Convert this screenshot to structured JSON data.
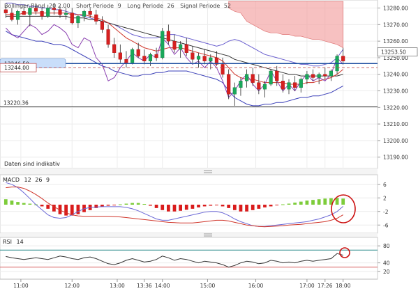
{
  "chart_data": {
    "type": "candlestick",
    "main": {
      "legend": [
        {
          "name": "Bollinger Band",
          "params": "20 2.00"
        },
        {
          "name": "Short Periode",
          "params": "9"
        },
        {
          "name": "Long Periode",
          "params": "26"
        },
        {
          "name": "Signal Periode",
          "params": "52"
        }
      ],
      "y_ticks": [
        "13280.00",
        "13270.00",
        "13260.00",
        "13250.00",
        "13240.00",
        "13230.00",
        "13220.00",
        "13210.00",
        "13200.00",
        "13190.00"
      ],
      "ylim": [
        13184,
        13284
      ],
      "price_label": "13253.50",
      "levels": [
        {
          "label": "13246.50",
          "value": 13246.5
        },
        {
          "label": "13244.00",
          "value": 13244.0
        },
        {
          "label": "13220.36",
          "value": 13220.36
        }
      ],
      "note": "Daten sind indikativ",
      "candles": [
        [
          13279,
          13281,
          13274,
          13277
        ],
        [
          13277,
          13280,
          13272,
          13273
        ],
        [
          13273,
          13279,
          13270,
          13278
        ],
        [
          13278,
          13282,
          13276,
          13276
        ],
        [
          13276,
          13281,
          13269,
          13280
        ],
        [
          13280,
          13283,
          13276,
          13278
        ],
        [
          13278,
          13281,
          13273,
          13275
        ],
        [
          13275,
          13282,
          13274,
          13280
        ],
        [
          13280,
          13283,
          13276,
          13279
        ],
        [
          13279,
          13281,
          13274,
          13276
        ],
        [
          13276,
          13280,
          13273,
          13277
        ],
        [
          13277,
          13280,
          13270,
          13271
        ],
        [
          13271,
          13276,
          13268,
          13275
        ],
        [
          13275,
          13279,
          13272,
          13278
        ],
        [
          13278,
          13280,
          13274,
          13276
        ],
        [
          13276,
          13279,
          13270,
          13272
        ],
        [
          13272,
          13275,
          13265,
          13267
        ],
        [
          13267,
          13270,
          13256,
          13258
        ],
        [
          13258,
          13262,
          13250,
          13253
        ],
        [
          13253,
          13258,
          13247,
          13249
        ],
        [
          13249,
          13254,
          13244,
          13247
        ],
        [
          13247,
          13256,
          13246,
          13255
        ],
        [
          13255,
          13259,
          13250,
          13251
        ],
        [
          13251,
          13255,
          13246,
          13248
        ],
        [
          13248,
          13253,
          13245,
          13252
        ],
        [
          13252,
          13256,
          13248,
          13250
        ],
        [
          13250,
          13268,
          13249,
          13266
        ],
        [
          13266,
          13270,
          13258,
          13260
        ],
        [
          13260,
          13264,
          13253,
          13255
        ],
        [
          13255,
          13260,
          13250,
          13258
        ],
        [
          13258,
          13262,
          13251,
          13253
        ],
        [
          13253,
          13257,
          13247,
          13249
        ],
        [
          13249,
          13253,
          13244,
          13251
        ],
        [
          13251,
          13255,
          13246,
          13248
        ],
        [
          13248,
          13252,
          13243,
          13250
        ],
        [
          13250,
          13254,
          13245,
          13246
        ],
        [
          13246,
          13250,
          13238,
          13240
        ],
        [
          13240,
          13243,
          13225,
          13228
        ],
        [
          13228,
          13235,
          13221,
          13232
        ],
        [
          13232,
          13238,
          13227,
          13236
        ],
        [
          13236,
          13243,
          13232,
          13240
        ],
        [
          13240,
          13244,
          13233,
          13235
        ],
        [
          13235,
          13240,
          13228,
          13231
        ],
        [
          13231,
          13236,
          13226,
          13234
        ],
        [
          13234,
          13243,
          13233,
          13242
        ],
        [
          13242,
          13245,
          13233,
          13236
        ],
        [
          13236,
          13240,
          13229,
          13231
        ],
        [
          13231,
          13237,
          13228,
          13235
        ],
        [
          13235,
          13239,
          13230,
          13232
        ],
        [
          13232,
          13238,
          13229,
          13237
        ],
        [
          13237,
          13242,
          13234,
          13240
        ],
        [
          13240,
          13243,
          13236,
          13238
        ],
        [
          13238,
          13241,
          13234,
          13240
        ],
        [
          13240,
          13244,
          13237,
          13239
        ],
        [
          13239,
          13243,
          13236,
          13242
        ],
        [
          13242,
          13252,
          13240,
          13251
        ],
        [
          13251,
          13256,
          13246,
          13248
        ]
      ],
      "bollinger_upper": [
        13283,
        13283,
        13282,
        13282,
        13281,
        13281,
        13280,
        13280,
        13279,
        13279,
        13278,
        13277,
        13276,
        13275,
        13274,
        13273,
        13272,
        13271,
        13270,
        13268,
        13266,
        13264,
        13263,
        13262,
        13262,
        13262,
        13263,
        13264,
        13264,
        13263,
        13262,
        13261,
        13260,
        13259,
        13258,
        13257,
        13258,
        13260,
        13261,
        13260,
        13258,
        13256,
        13254,
        13252,
        13251,
        13250,
        13249,
        13248,
        13247,
        13246,
        13246,
        13245,
        13245,
        13246,
        13247,
        13250,
        13255
      ],
      "bollinger_lower": [
        13266,
        13264,
        13263,
        13262,
        13261,
        13260,
        13260,
        13259,
        13258,
        13258,
        13257,
        13255,
        13253,
        13251,
        13249,
        13247,
        13245,
        13244,
        13242,
        13241,
        13240,
        13239,
        13239,
        13240,
        13240,
        13241,
        13241,
        13242,
        13242,
        13242,
        13242,
        13241,
        13240,
        13239,
        13238,
        13237,
        13235,
        13230,
        13226,
        13224,
        13222,
        13221,
        13221,
        13222,
        13222,
        13223,
        13223,
        13224,
        13225,
        13226,
        13226,
        13227,
        13227,
        13228,
        13229,
        13231,
        13233
      ],
      "ma_short": [
        13276,
        13276,
        13276,
        13277,
        13277,
        13277,
        13277,
        13277,
        13277,
        13277,
        13277,
        13276,
        13276,
        13276,
        13275,
        13274,
        13273,
        13271,
        13268,
        13265,
        13262,
        13260,
        13258,
        13256,
        13255,
        13254,
        13255,
        13256,
        13256,
        13256,
        13255,
        13254,
        13253,
        13252,
        13251,
        13250,
        13248,
        13244,
        13240,
        13238,
        13237,
        13237,
        13236,
        13235,
        13235,
        13235,
        13235,
        13234,
        13234,
        13234,
        13235,
        13235,
        13236,
        13237,
        13238,
        13240,
        13243
      ],
      "ma_long": [
        13275,
        13275,
        13275,
        13275,
        13275,
        13275,
        13275,
        13275,
        13275,
        13275,
        13275,
        13274,
        13274,
        13274,
        13273,
        13273,
        13272,
        13271,
        13270,
        13269,
        13268,
        13267,
        13266,
        13265,
        13264,
        13263,
        13262,
        13261,
        13260,
        13259,
        13258,
        13257,
        13256,
        13255,
        13254,
        13253,
        13252,
        13251,
        13249,
        13248,
        13247,
        13246,
        13245,
        13244,
        13243,
        13242,
        13241,
        13240,
        13240,
        13239,
        13239,
        13239,
        13239,
        13239,
        13239,
        13239,
        13240
      ],
      "signal_line": [
        13268,
        13264,
        13262,
        13266,
        13270,
        13268,
        13264,
        13266,
        13270,
        13268,
        13265,
        13258,
        13256,
        13262,
        13260,
        13250,
        13246,
        13236,
        13238,
        13244,
        13248,
        13253,
        13250,
        13248,
        13252,
        13250,
        13262,
        13258,
        13252,
        13256,
        13250,
        13246,
        13248,
        13244,
        13248,
        13244,
        13236,
        13226,
        13230,
        13236,
        13240,
        13234,
        13230,
        13234,
        13242,
        13236,
        13230,
        13234,
        13230,
        13236,
        13240,
        13236,
        13238,
        13236,
        13240,
        13250,
        13246
      ],
      "cloud_top": [
        13290,
        13290,
        13290,
        13290,
        13290,
        13290,
        13290,
        13290,
        13290,
        13290,
        13290,
        13290,
        13290,
        13290,
        13290,
        13290,
        13290,
        13290,
        13290,
        13290,
        13290,
        13290,
        13290,
        13290,
        13290,
        13290,
        13290,
        13290,
        13290,
        13290,
        13290,
        13290,
        13290,
        13290,
        13290,
        13290,
        13290,
        13290,
        13290,
        13290,
        13290,
        13290,
        13290,
        13290,
        13290,
        13290,
        13290,
        13290,
        13290,
        13290,
        13290,
        13290,
        13290,
        13290,
        13290,
        13290,
        13290
      ],
      "cloud_bottom": [
        null,
        null,
        null,
        null,
        null,
        null,
        null,
        null,
        null,
        null,
        null,
        null,
        null,
        null,
        null,
        null,
        null,
        null,
        null,
        null,
        null,
        null,
        null,
        null,
        null,
        null,
        null,
        null,
        null,
        null,
        null,
        null,
        null,
        null,
        null,
        null,
        null,
        13280,
        13278,
        13277,
        13272,
        13270,
        13268,
        13266,
        13265,
        13265,
        13264,
        13264,
        13263,
        13263,
        13262,
        13261,
        13261,
        13260,
        13259,
        13258,
        13256
      ]
    },
    "macd": {
      "title": "MACD",
      "params": [
        "12",
        "26",
        "9"
      ],
      "y_ticks": [
        "6",
        "2",
        "-2",
        "-6"
      ],
      "ylim": [
        -8,
        8
      ],
      "histogram": [
        1.6,
        1.2,
        0.8,
        0.5,
        0.3,
        0.1,
        -0.5,
        -1.2,
        -2,
        -2.8,
        -3.2,
        -3.2,
        -2.8,
        -2.2,
        -1.6,
        -1,
        -0.6,
        -0.3,
        -0.1,
        0.1,
        0.3,
        0.5,
        0.5,
        0.2,
        -0.3,
        -1,
        -1.6,
        -2,
        -2,
        -1.8,
        -1.5,
        -1.2,
        -0.8,
        -0.5,
        -0.3,
        -0.2,
        -0.5,
        -1,
        -1.6,
        -2,
        -2,
        -1.6,
        -1.2,
        -0.8,
        -0.5,
        -0.2,
        0.1,
        0.3,
        0.6,
        0.9,
        1.2,
        1.4,
        1.6,
        1.8,
        1.9,
        2.0,
        1.8
      ],
      "macd_line": [
        6.5,
        6.0,
        5.0,
        3.5,
        1.8,
        0,
        -1.5,
        -3,
        -3.8,
        -4,
        -3.8,
        -3,
        -2,
        -1.2,
        -0.8,
        -0.7,
        -0.6,
        -0.6,
        -0.6,
        -0.6,
        -0.8,
        -1.2,
        -1.8,
        -2.6,
        -3.4,
        -4.2,
        -4.6,
        -4.6,
        -4.2,
        -3.8,
        -3.4,
        -3,
        -2.6,
        -2.2,
        -2,
        -2,
        -2.4,
        -3.2,
        -4.2,
        -5,
        -5.6,
        -6.2,
        -6.4,
        -6.4,
        -6.2,
        -6,
        -5.8,
        -5.6,
        -5.4,
        -5.2,
        -5,
        -4.6,
        -4.2,
        -3.6,
        -3,
        -2,
        -0.5
      ],
      "signal_line": [
        5,
        5.2,
        5.2,
        4.8,
        4,
        3,
        1.8,
        0.5,
        -0.6,
        -1.6,
        -2.4,
        -3,
        -3.3,
        -3.4,
        -3.4,
        -3.4,
        -3.4,
        -3.4,
        -3.5,
        -3.6,
        -3.8,
        -4,
        -4.2,
        -4.4,
        -4.6,
        -4.8,
        -5,
        -5.2,
        -5.3,
        -5.4,
        -5.4,
        -5.4,
        -5.2,
        -5,
        -4.8,
        -4.6,
        -4.6,
        -4.8,
        -5.2,
        -5.6,
        -6,
        -6.2,
        -6.4,
        -6.5,
        -6.4,
        -6.3,
        -6.2,
        -6,
        -5.9,
        -5.8,
        -5.6,
        -5.4,
        -5.2,
        -5,
        -4.6,
        -4,
        -3
      ]
    },
    "rsi": {
      "title": "RSI",
      "period": "14",
      "y_ticks": [
        "80",
        "40",
        "20"
      ],
      "ylim": [
        5,
        95
      ],
      "upper_level": 70,
      "lower_level": 30,
      "values": [
        55,
        52,
        50,
        48,
        50,
        52,
        50,
        48,
        52,
        56,
        54,
        50,
        48,
        52,
        54,
        50,
        44,
        38,
        36,
        40,
        46,
        50,
        46,
        42,
        44,
        48,
        56,
        52,
        46,
        50,
        48,
        44,
        40,
        44,
        42,
        40,
        36,
        30,
        34,
        40,
        44,
        42,
        38,
        40,
        46,
        44,
        40,
        42,
        40,
        44,
        46,
        44,
        46,
        48,
        50,
        62,
        58
      ]
    },
    "x_labels": [
      {
        "label": "11:00",
        "i": 2.5
      },
      {
        "label": "12:00",
        "i": 11
      },
      {
        "label": "13:00",
        "i": 18.5
      },
      {
        "label": "13:36",
        "i": 23
      },
      {
        "label": "14:00",
        "i": 26
      },
      {
        "label": "15:00",
        "i": 33.5
      },
      {
        "label": "16:00",
        "i": 41.5
      },
      {
        "label": "17:00",
        "i": 50
      },
      {
        "label": "17:26",
        "i": 53
      },
      {
        "label": "18:00",
        "i": 56
      }
    ]
  }
}
